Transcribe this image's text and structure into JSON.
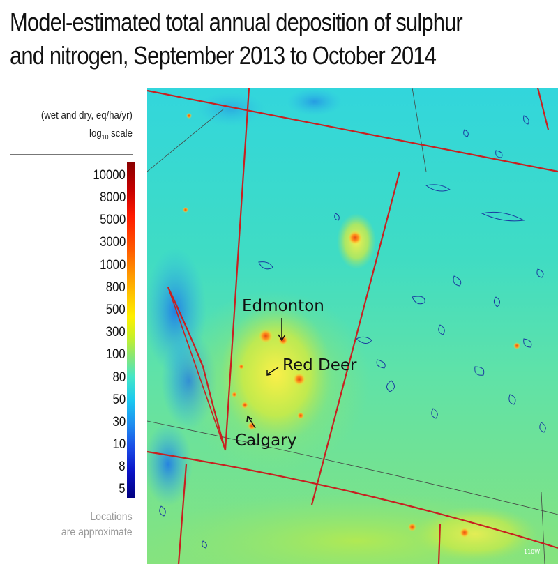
{
  "title": {
    "line1": "Model-estimated total annual deposition of sulphur",
    "line2": "and nitrogen, September 2013 to October 2014"
  },
  "legend": {
    "units_line1": "(wet and dry, eq/ha/yr)",
    "units_line2_prefix": "log",
    "units_line2_sub": "10",
    "units_line2_suffix": " scale",
    "ticks": [
      "10000",
      "8000",
      "5000",
      "3000",
      "1000",
      "800",
      "500",
      "300",
      "100",
      "80",
      "50",
      "30",
      "10",
      "8",
      "5"
    ]
  },
  "note": {
    "line1": "Locations",
    "line2": "are approximate"
  },
  "map": {
    "labels": {
      "edmonton": "Edmonton",
      "red_deer": "Red Deer",
      "calgary": "Calgary"
    },
    "longitude_label": "110W",
    "colors": {
      "background_high": "#2bd8d8",
      "background_mid": "#5ee3a8",
      "prairie": "#8fe27a",
      "hotspot": "#ffe45a",
      "border": "#c82020",
      "lakes": "#1a3aa0",
      "mountains": "#2a8fe0"
    }
  }
}
